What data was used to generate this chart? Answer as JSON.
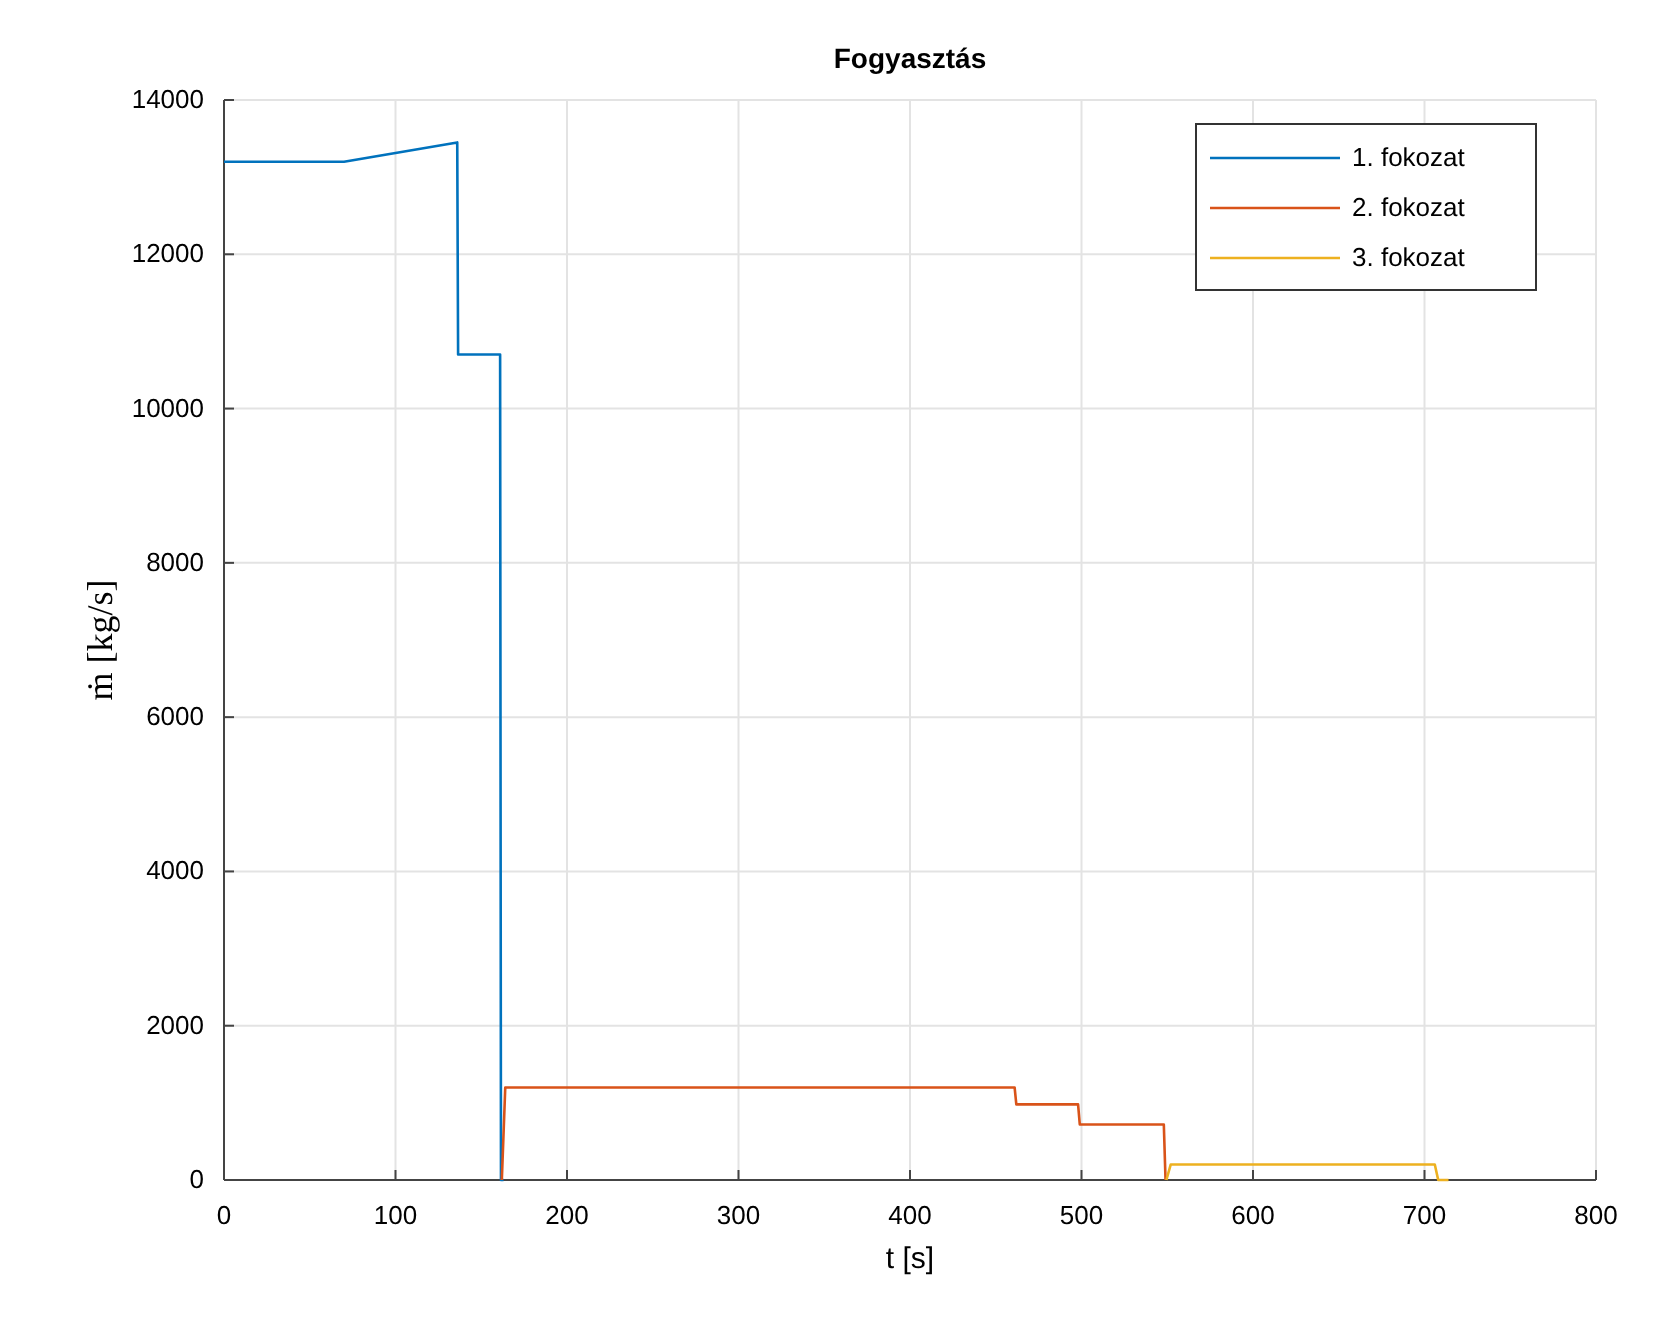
{
  "chart_data": {
    "type": "line",
    "title": "Fogyasztás",
    "xlabel": "t [s]",
    "ylabel": "ṁ  [kg/s]",
    "xlim": [
      0,
      800
    ],
    "ylim": [
      0,
      14000
    ],
    "xticks": [
      0,
      100,
      200,
      300,
      400,
      500,
      600,
      700,
      800
    ],
    "yticks": [
      0,
      2000,
      4000,
      6000,
      8000,
      10000,
      12000,
      14000
    ],
    "grid": true,
    "legend": "top right",
    "line_style": "solid",
    "series": [
      {
        "name": "1. fokozat",
        "color": "#0072bd",
        "x": [
          0,
          70,
          136,
          136.5,
          161,
          161.5,
          163
        ],
        "values": [
          13200,
          13200,
          13450,
          10700,
          10700,
          0,
          0
        ]
      },
      {
        "name": "2. fokozat",
        "color": "#d95319",
        "x": [
          162,
          164,
          461,
          462,
          498,
          499,
          548,
          549
        ],
        "values": [
          0,
          1200,
          1200,
          980,
          980,
          720,
          720,
          0
        ]
      },
      {
        "name": "3. fokozat",
        "color": "#edb120",
        "x": [
          549.5,
          552,
          706,
          708,
          714
        ],
        "values": [
          0,
          200,
          200,
          0,
          0
        ]
      }
    ]
  }
}
